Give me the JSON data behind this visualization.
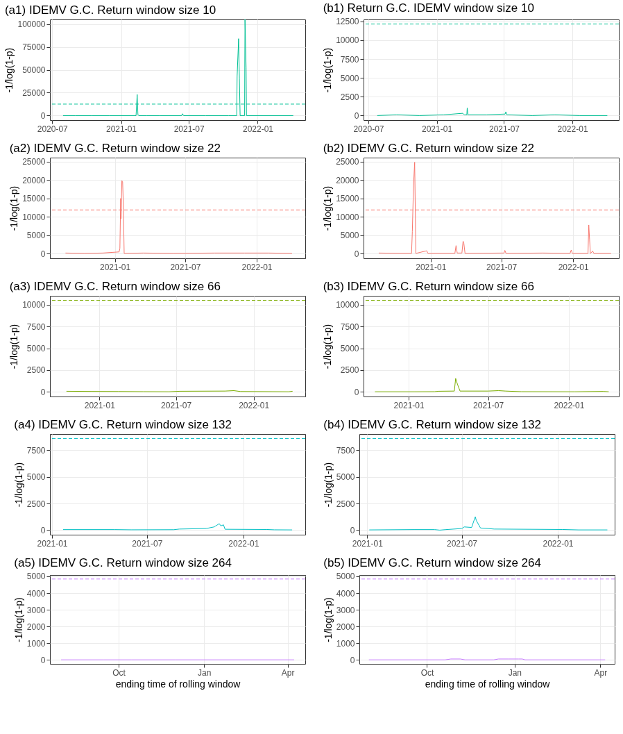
{
  "chart_data": [
    {
      "type": "line",
      "title": "(a1) IDEMV G.C. Return window size 10",
      "ylabel": "-1/log(1-p)",
      "grid": true,
      "xlim": [
        "2020-06-25",
        "2022-05-08"
      ],
      "xticks": [
        "2020-07",
        "2021-01",
        "2021-07",
        "2022-01"
      ],
      "ylim": [
        -5000,
        105000
      ],
      "yticks": [
        0,
        25000,
        50000,
        75000,
        100000
      ],
      "ref_lines": [
        {
          "axis": "y",
          "value": 12500,
          "color": "#00c094",
          "line_style": "dashed"
        }
      ],
      "x": [
        "2020-07-30",
        "2020-09-01",
        "2020-10-15",
        "2020-12-01",
        "2021-02-10",
        "2021-02-13",
        "2021-02-15",
        "2021-02-17",
        "2021-03-10",
        "2021-04-15",
        "2021-06-12",
        "2021-06-14",
        "2021-06-17",
        "2021-08-15",
        "2021-10-15",
        "2021-11-06",
        "2021-11-07",
        "2021-11-11",
        "2021-11-13",
        "2021-11-15",
        "2021-11-27",
        "2021-11-28",
        "2021-12-01",
        "2021-12-02",
        "2022-01-15",
        "2022-04-06"
      ],
      "series": [
        {
          "color": "#00c094",
          "values": [
            0,
            0,
            0,
            0,
            0,
            23000,
            1000,
            0,
            0,
            0,
            0,
            2000,
            0,
            0,
            0,
            0,
            43000,
            84000,
            41000,
            0,
            0,
            105000,
            52000,
            0,
            0,
            0
          ]
        }
      ]
    },
    {
      "type": "line",
      "title": "(b1) Return G.C. IDEMV window size 10",
      "ylabel": "-1/log(1-p)",
      "grid": true,
      "xlim": [
        "2020-06-18",
        "2022-05-06"
      ],
      "xticks": [
        "2020-07",
        "2021-01",
        "2021-07",
        "2022-01"
      ],
      "ylim": [
        -610,
        12760
      ],
      "yticks": [
        0,
        2500,
        5000,
        7500,
        10000,
        12500
      ],
      "ref_lines": [
        {
          "axis": "y",
          "value": 12150,
          "color": "#00c094",
          "line_style": "dashed"
        }
      ],
      "x": [
        "2020-07-25",
        "2020-09-15",
        "2020-11-15",
        "2021-01-20",
        "2021-03-12",
        "2021-03-16",
        "2021-03-23",
        "2021-03-24",
        "2021-03-26",
        "2021-05-15",
        "2021-07-04",
        "2021-07-06",
        "2021-07-09",
        "2021-09-15",
        "2021-11-15",
        "2022-01-20",
        "2022-04-05"
      ],
      "series": [
        {
          "color": "#00c094",
          "values": [
            0,
            100,
            0,
            100,
            300,
            100,
            100,
            1000,
            100,
            100,
            200,
            500,
            100,
            0,
            100,
            0,
            0
          ]
        }
      ]
    },
    {
      "type": "line",
      "title": "(a2) IDEMV G.C. Return window size 22",
      "ylabel": "-1/log(1-p)",
      "grid": true,
      "xlim": [
        "2020-07-18",
        "2022-05-06"
      ],
      "xticks": [
        "2021-01",
        "2021-07",
        "2022-01"
      ],
      "ylim": [
        -1240,
        26040
      ],
      "yticks": [
        0,
        5000,
        10000,
        15000,
        20000,
        25000
      ],
      "ref_lines": [
        {
          "axis": "y",
          "value": 11870,
          "color": "#f8766d",
          "line_style": "dashed"
        }
      ],
      "x": [
        "2020-08-27",
        "2020-10-15",
        "2020-12-01",
        "2021-01-12",
        "2021-01-14",
        "2021-01-16",
        "2021-01-17",
        "2021-01-19",
        "2021-01-21",
        "2021-01-23",
        "2021-01-25",
        "2021-03-15",
        "2021-06-01",
        "2021-09-15",
        "2021-12-01",
        "2022-02-01",
        "2022-04-02"
      ],
      "series": [
        {
          "color": "#f8766d",
          "values": [
            200,
            100,
            200,
            500,
            1500,
            15000,
            9500,
            19800,
            19500,
            12500,
            100,
            200,
            100,
            200,
            200,
            200,
            100
          ]
        }
      ]
    },
    {
      "type": "line",
      "title": "(b2) IDEMV G.C. Return window size 22",
      "ylabel": "-1/log(1-p)",
      "grid": true,
      "xlim": [
        "2020-07-13",
        "2022-04-28"
      ],
      "xticks": [
        "2021-01",
        "2021-07",
        "2022-01"
      ],
      "ylim": [
        -1240,
        26040
      ],
      "yticks": [
        0,
        5000,
        10000,
        15000,
        20000,
        25000
      ],
      "ref_lines": [
        {
          "axis": "y",
          "value": 11870,
          "color": "#f8766d",
          "line_style": "dashed"
        }
      ],
      "x": [
        "2020-08-21",
        "2020-10-15",
        "2020-11-13",
        "2020-11-15",
        "2020-11-18",
        "2020-11-21",
        "2020-11-24",
        "2020-12-22",
        "2020-12-25",
        "2021-03-04",
        "2021-03-07",
        "2021-03-10",
        "2021-03-22",
        "2021-03-25",
        "2021-03-27",
        "2021-03-30",
        "2021-07-08",
        "2021-07-10",
        "2021-07-13",
        "2021-10-15",
        "2021-12-24",
        "2021-12-27",
        "2021-12-30",
        "2022-02-08",
        "2022-02-10",
        "2022-02-12",
        "2022-02-14",
        "2022-02-20",
        "2022-02-23",
        "2022-04-08"
      ],
      "series": [
        {
          "color": "#f8766d",
          "values": [
            200,
            100,
            100,
            6000,
            18500,
            24800,
            100,
            800,
            100,
            100,
            2200,
            200,
            200,
            3400,
            2800,
            100,
            200,
            900,
            100,
            200,
            100,
            1000,
            100,
            100,
            7800,
            4000,
            100,
            700,
            100,
            100
          ]
        }
      ]
    },
    {
      "type": "line",
      "title": "(a3) IDEMV G.C. Return window size 66",
      "ylabel": "-1/log(1-p)",
      "grid": true,
      "xlim": [
        "2020-09-06",
        "2022-05-03"
      ],
      "xticks": [
        "2021-01",
        "2021-07",
        "2022-01"
      ],
      "ylim": [
        -525,
        11015
      ],
      "yticks": [
        0,
        2500,
        5000,
        7500,
        10000
      ],
      "ref_lines": [
        {
          "axis": "y",
          "value": 10490,
          "color": "#7cae00",
          "line_style": "dashed"
        }
      ],
      "x": [
        "2020-10-15",
        "2020-12-15",
        "2021-02-15",
        "2021-04-15",
        "2021-06-15",
        "2021-07-10",
        "2021-10-25",
        "2021-11-15",
        "2021-12-01",
        "2022-02-15",
        "2022-03-25",
        "2022-04-03"
      ],
      "series": [
        {
          "color": "#7cae00",
          "values": [
            80,
            60,
            50,
            30,
            20,
            80,
            100,
            150,
            50,
            30,
            20,
            80
          ]
        }
      ]
    },
    {
      "type": "line",
      "title": "(b3) IDEMV G.C. Return window size 66",
      "ylabel": "-1/log(1-p)",
      "grid": true,
      "xlim": [
        "2020-09-20",
        "2022-04-25"
      ],
      "xticks": [
        "2021-01",
        "2021-07",
        "2022-01"
      ],
      "ylim": [
        -525,
        11015
      ],
      "yticks": [
        0,
        2500,
        5000,
        7500,
        10000
      ],
      "ref_lines": [
        {
          "axis": "y",
          "value": 10490,
          "color": "#7cae00",
          "line_style": "dashed"
        }
      ],
      "x": [
        "2020-10-16",
        "2021-01-15",
        "2021-03-01",
        "2021-03-10",
        "2021-04-15",
        "2021-04-18",
        "2021-04-22",
        "2021-04-28",
        "2021-07-01",
        "2021-07-25",
        "2021-08-10",
        "2021-09-15",
        "2022-01-15",
        "2022-03-20",
        "2022-04-02"
      ],
      "series": [
        {
          "color": "#7cae00",
          "values": [
            20,
            20,
            30,
            80,
            100,
            1550,
            900,
            100,
            100,
            150,
            100,
            30,
            20,
            60,
            20
          ]
        }
      ]
    },
    {
      "type": "line",
      "title": "(a4) IDEMV G.C. Return window size 132",
      "ylabel": "-1/log(1-p)",
      "grid": true,
      "xlim": [
        "2020-12-28",
        "2022-04-29"
      ],
      "xticks": [
        "2021-01",
        "2021-07",
        "2022-01"
      ],
      "ylim": [
        -430,
        9015
      ],
      "yticks": [
        0,
        2500,
        5000,
        7500
      ],
      "ref_lines": [
        {
          "axis": "y",
          "value": 8585,
          "color": "#00bfc4",
          "line_style": "dashed"
        }
      ],
      "x": [
        "2021-01-22",
        "2021-05-01",
        "2021-06-01",
        "2021-08-21",
        "2021-09-01",
        "2021-10-22",
        "2021-11-06",
        "2021-11-16",
        "2021-11-19",
        "2021-11-24",
        "2021-11-27",
        "2022-02-15",
        "2022-03-01",
        "2022-04-04"
      ],
      "series": [
        {
          "color": "#00bfc4",
          "values": [
            50,
            50,
            30,
            40,
            100,
            150,
            300,
            600,
            400,
            500,
            80,
            60,
            30,
            20
          ]
        }
      ]
    },
    {
      "type": "line",
      "title": "(b4) IDEMV G.C. Return window size 132",
      "ylabel": "-1/log(1-p)",
      "grid": true,
      "xlim": [
        "2020-12-17",
        "2022-04-20"
      ],
      "xticks": [
        "2021-01",
        "2021-07",
        "2022-01"
      ],
      "ylim": [
        -430,
        9015
      ],
      "yticks": [
        0,
        2500,
        5000,
        7500
      ],
      "ref_lines": [
        {
          "axis": "y",
          "value": 8585,
          "color": "#00bfc4",
          "line_style": "dashed"
        }
      ],
      "x": [
        "2021-01-05",
        "2021-04-01",
        "2021-05-10",
        "2021-05-20",
        "2021-06-01",
        "2021-07-01",
        "2021-07-06",
        "2021-07-20",
        "2021-07-27",
        "2021-07-29",
        "2021-08-06",
        "2021-08-20",
        "2021-09-01",
        "2022-01-10",
        "2022-02-10",
        "2022-04-06"
      ],
      "series": [
        {
          "color": "#00bfc4",
          "values": [
            20,
            50,
            50,
            0,
            50,
            150,
            300,
            250,
            1250,
            900,
            200,
            150,
            100,
            60,
            20,
            20
          ]
        }
      ]
    },
    {
      "type": "line",
      "title": "(a5) IDEMV G.C. Return window size 264",
      "xlabel": "ending time of rolling window",
      "ylabel": "-1/log(1-p)",
      "grid": true,
      "xlim": [
        "2021-07-19",
        "2022-04-20"
      ],
      "xticks": [
        {
          "value": "2021-10-01",
          "label": "Oct"
        },
        {
          "value": "2022-01-01",
          "label": "Jan"
        },
        {
          "value": "2022-04-01",
          "label": "Apr"
        }
      ],
      "ylim": [
        -242,
        5082
      ],
      "yticks": [
        0,
        1000,
        2000,
        3000,
        4000,
        5000
      ],
      "ref_lines": [
        {
          "axis": "y",
          "value": 4840,
          "color": "#c77cff",
          "line_style": "dashed"
        }
      ],
      "x": [
        "2021-07-31",
        "2021-09-15",
        "2021-10-15",
        "2021-12-01",
        "2022-01-15",
        "2022-03-01",
        "2022-04-08"
      ],
      "series": [
        {
          "color": "#c77cff",
          "values": [
            0,
            0,
            0,
            0,
            0,
            0,
            0
          ]
        }
      ]
    },
    {
      "type": "line",
      "title": "(b5) IDEMV G.C. Return window size 264",
      "xlabel": "ending time of rolling window",
      "ylabel": "-1/log(1-p)",
      "grid": true,
      "xlim": [
        "2021-07-22",
        "2022-04-16"
      ],
      "xticks": [
        {
          "value": "2021-10-01",
          "label": "Oct"
        },
        {
          "value": "2022-01-01",
          "label": "Jan"
        },
        {
          "value": "2022-04-01",
          "label": "Apr"
        }
      ],
      "ylim": [
        -242,
        5082
      ],
      "yticks": [
        0,
        1000,
        2000,
        3000,
        4000,
        5000
      ],
      "ref_lines": [
        {
          "axis": "y",
          "value": 4840,
          "color": "#c77cff",
          "line_style": "dashed"
        }
      ],
      "x": [
        "2021-08-01",
        "2021-10-20",
        "2021-10-26",
        "2021-11-05",
        "2021-11-10",
        "2021-12-10",
        "2021-12-15",
        "2021-12-25",
        "2022-01-05",
        "2022-01-09",
        "2022-01-12",
        "2022-04-06"
      ],
      "series": [
        {
          "color": "#c77cff",
          "values": [
            0,
            0,
            50,
            50,
            0,
            0,
            50,
            50,
            50,
            50,
            0,
            0
          ]
        }
      ]
    }
  ]
}
